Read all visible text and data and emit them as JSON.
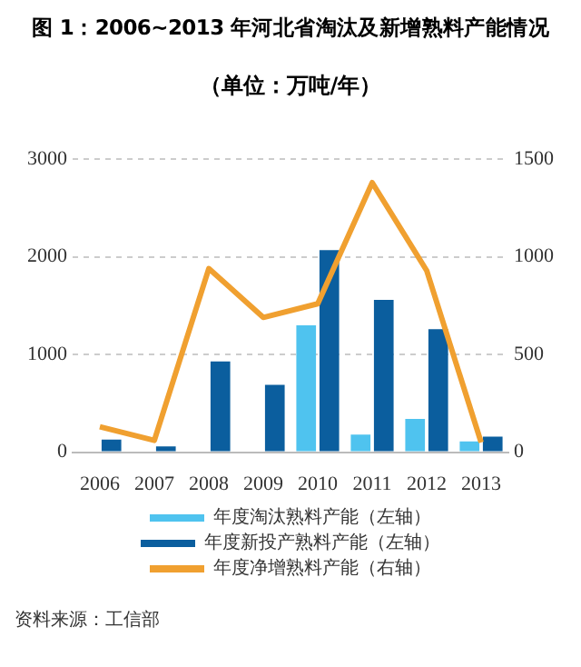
{
  "chart_data": {
    "type": "bar",
    "title": "图 1：2006~2013 年河北省淘汰及新增熟料产能情况",
    "subtitle": "（单位：万吨/年）",
    "categories": [
      "2006",
      "2007",
      "2008",
      "2009",
      "2010",
      "2011",
      "2012",
      "2013"
    ],
    "series": [
      {
        "name": "年度淘汰熟料产能（左轴）",
        "color": "#4fc3ef",
        "values": [
          0,
          0,
          0,
          0,
          1300,
          180,
          340,
          110
        ]
      },
      {
        "name": "年度新投产熟料产能（左轴）",
        "color": "#0b5e9e",
        "values": [
          130,
          60,
          930,
          690,
          2070,
          1560,
          1260,
          160
        ]
      },
      {
        "name": "年度净增熟料产能（右轴）",
        "type": "line",
        "axis": "y2",
        "color": "#f0a030",
        "values": [
          130,
          60,
          940,
          690,
          760,
          1380,
          930,
          50
        ]
      }
    ],
    "ylim": [
      0,
      3000
    ],
    "yticks": [
      0,
      1000,
      2000,
      3000
    ],
    "y2lim": [
      0,
      1500
    ],
    "y2ticks": [
      0,
      500,
      1000,
      1500
    ],
    "grid": "y",
    "legend": "bottom",
    "marker": "none",
    "annotations": [
      "资料来源：工信部"
    ]
  }
}
